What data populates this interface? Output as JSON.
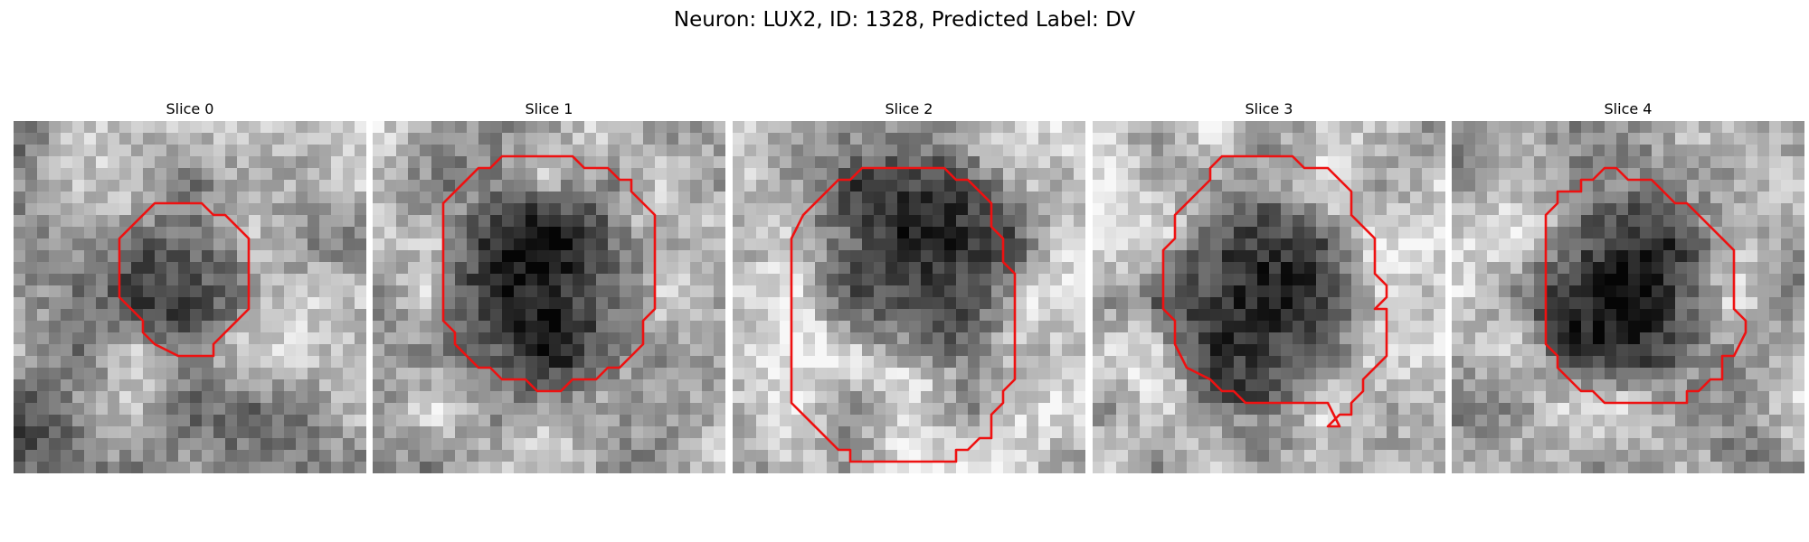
{
  "figure": {
    "title": "Neuron: LUX2, ID: 1328, Predicted Label: DV"
  },
  "image_description": "grayscale microscopy crops, 30x30 pixel grid, with red outline around dark neuron nucleus",
  "colors": {
    "contour": "#ee1111",
    "background": "#ffffff"
  },
  "panels": [
    {
      "title": "Slice 0",
      "image": {
        "seed": 11,
        "base": 0.62,
        "blob_cx": 14,
        "blob_cy": 13,
        "blob_r": 6.5,
        "blob_depth": 0.28,
        "dark_corner": "bottom-left"
      },
      "contour": [
        [
          9,
          10
        ],
        [
          12,
          7
        ],
        [
          16,
          7
        ],
        [
          17,
          8
        ],
        [
          18,
          8
        ],
        [
          20,
          10
        ],
        [
          20,
          16
        ],
        [
          17,
          19
        ],
        [
          17,
          20
        ],
        [
          14,
          20
        ],
        [
          12,
          19
        ],
        [
          11,
          18
        ],
        [
          11,
          17
        ],
        [
          9,
          15
        ]
      ]
    },
    {
      "title": "Slice 1",
      "image": {
        "seed": 23,
        "base": 0.7,
        "blob_cx": 14,
        "blob_cy": 14,
        "blob_r": 10,
        "blob_depth": 0.55,
        "dark_corner": "none"
      },
      "contour": [
        [
          6,
          7
        ],
        [
          9,
          4
        ],
        [
          10,
          4
        ],
        [
          11,
          3
        ],
        [
          17,
          3
        ],
        [
          18,
          4
        ],
        [
          20,
          4
        ],
        [
          21,
          5
        ],
        [
          22,
          5
        ],
        [
          22,
          6
        ],
        [
          24,
          8
        ],
        [
          24,
          16
        ],
        [
          23,
          17
        ],
        [
          23,
          19
        ],
        [
          22,
          20
        ],
        [
          21,
          21
        ],
        [
          20,
          21
        ],
        [
          19,
          22
        ],
        [
          17,
          22
        ],
        [
          16,
          23
        ],
        [
          14,
          23
        ],
        [
          13,
          22
        ],
        [
          11,
          22
        ],
        [
          10,
          21
        ],
        [
          9,
          21
        ],
        [
          8,
          20
        ],
        [
          7,
          19
        ],
        [
          7,
          18
        ],
        [
          6,
          17
        ]
      ]
    },
    {
      "title": "Slice 2",
      "image": {
        "seed": 37,
        "base": 0.72,
        "blob_cx": 15,
        "blob_cy": 11,
        "blob_r": 10.5,
        "blob_depth": 0.55,
        "dark_corner": "none"
      },
      "contour": [
        [
          5,
          10
        ],
        [
          6,
          8
        ],
        [
          9,
          5
        ],
        [
          10,
          5
        ],
        [
          11,
          4
        ],
        [
          18,
          4
        ],
        [
          19,
          5
        ],
        [
          20,
          5
        ],
        [
          22,
          7
        ],
        [
          22,
          9
        ],
        [
          23,
          10
        ],
        [
          23,
          12
        ],
        [
          24,
          13
        ],
        [
          24,
          22
        ],
        [
          23,
          23
        ],
        [
          23,
          24
        ],
        [
          22,
          25
        ],
        [
          22,
          27
        ],
        [
          21,
          27
        ],
        [
          20,
          28
        ],
        [
          19,
          28
        ],
        [
          19,
          29
        ],
        [
          10,
          29
        ],
        [
          10,
          28
        ],
        [
          9,
          28
        ],
        [
          5,
          24
        ]
      ]
    },
    {
      "title": "Slice 3",
      "image": {
        "seed": 51,
        "base": 0.72,
        "blob_cx": 14,
        "blob_cy": 15,
        "blob_r": 10,
        "blob_depth": 0.55,
        "dark_corner": "none"
      },
      "contour": [
        [
          6,
          11
        ],
        [
          7,
          10
        ],
        [
          7,
          8
        ],
        [
          10,
          5
        ],
        [
          10,
          4
        ],
        [
          11,
          3
        ],
        [
          17,
          3
        ],
        [
          18,
          4
        ],
        [
          20,
          4
        ],
        [
          22,
          6
        ],
        [
          22,
          8
        ],
        [
          24,
          10
        ],
        [
          24,
          13
        ],
        [
          25,
          14
        ],
        [
          25,
          15
        ],
        [
          24,
          16
        ],
        [
          25,
          16
        ],
        [
          25,
          20
        ],
        [
          23,
          22
        ],
        [
          23,
          23
        ],
        [
          22,
          24
        ],
        [
          22,
          25
        ],
        [
          21,
          25
        ],
        [
          20,
          26
        ],
        [
          21,
          26
        ],
        [
          20,
          24
        ],
        [
          13,
          24
        ],
        [
          12,
          23
        ],
        [
          11,
          23
        ],
        [
          10,
          22
        ],
        [
          8,
          21
        ],
        [
          7,
          19
        ],
        [
          7,
          17
        ],
        [
          6,
          16
        ]
      ]
    },
    {
      "title": "Slice 4",
      "image": {
        "seed": 67,
        "base": 0.68,
        "blob_cx": 14,
        "blob_cy": 14,
        "blob_r": 9,
        "blob_depth": 0.5,
        "dark_corner": "top-left"
      },
      "contour": [
        [
          8,
          10
        ],
        [
          8,
          8
        ],
        [
          9,
          7
        ],
        [
          9,
          6
        ],
        [
          11,
          6
        ],
        [
          11,
          5
        ],
        [
          12,
          5
        ],
        [
          13,
          4
        ],
        [
          14,
          4
        ],
        [
          15,
          5
        ],
        [
          16,
          5
        ],
        [
          17,
          5
        ],
        [
          19,
          7
        ],
        [
          20,
          7
        ],
        [
          21,
          8
        ],
        [
          24,
          11
        ],
        [
          24,
          16
        ],
        [
          25,
          17
        ],
        [
          25,
          18
        ],
        [
          24,
          20
        ],
        [
          23,
          20
        ],
        [
          23,
          22
        ],
        [
          22,
          22
        ],
        [
          21,
          23
        ],
        [
          20,
          23
        ],
        [
          20,
          24
        ],
        [
          13,
          24
        ],
        [
          12,
          23
        ],
        [
          11,
          23
        ],
        [
          10,
          22
        ],
        [
          9,
          21
        ],
        [
          9,
          20
        ],
        [
          8,
          19
        ]
      ]
    }
  ]
}
